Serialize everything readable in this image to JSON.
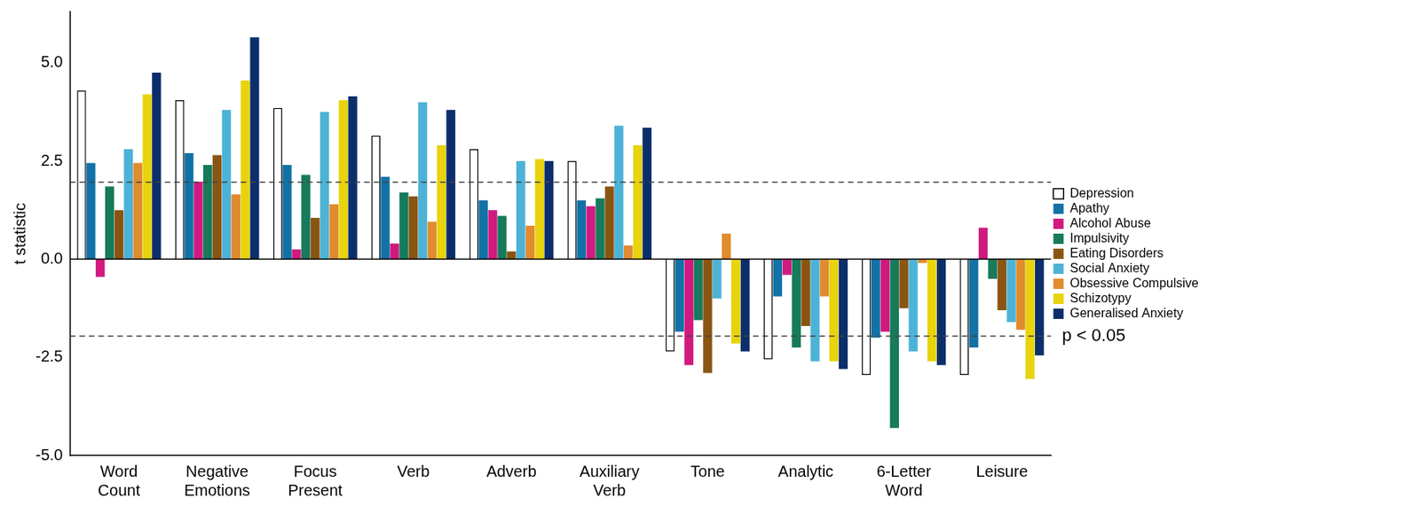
{
  "chart_data": {
    "type": "bar",
    "y_label": "t statistic",
    "categories": [
      "Word Count",
      "Negative Emotions",
      "Focus Present",
      "Verb",
      "Adverb",
      "Auxiliary Verb",
      "Tone",
      "Analytic",
      "6-Letter Word",
      "Leisure"
    ],
    "series": [
      {
        "name": "Depression",
        "color": "#ffffff",
        "values": [
          4.3,
          4.05,
          3.85,
          3.15,
          2.8,
          2.5,
          -2.35,
          -2.55,
          -2.95,
          -2.95
        ]
      },
      {
        "name": "Apathy",
        "color": "#1272a6",
        "values": [
          2.45,
          2.7,
          2.4,
          2.1,
          1.5,
          1.5,
          -1.85,
          -0.95,
          -2.0,
          -2.25
        ]
      },
      {
        "name": "Alcohol Abuse",
        "color": "#d1197f",
        "values": [
          -0.45,
          1.97,
          0.25,
          0.4,
          1.25,
          1.35,
          -2.7,
          -0.4,
          -1.85,
          0.8
        ]
      },
      {
        "name": "Impulsivity",
        "color": "#167a5b",
        "values": [
          1.85,
          2.4,
          2.15,
          1.7,
          1.1,
          1.55,
          -1.55,
          -2.25,
          -4.3,
          -0.5
        ]
      },
      {
        "name": "Eating Disorders",
        "color": "#8a5512",
        "values": [
          1.25,
          2.65,
          1.05,
          1.6,
          0.2,
          1.85,
          -2.9,
          -1.7,
          -1.25,
          -1.3
        ]
      },
      {
        "name": "Social Anxiety",
        "color": "#4db3d6",
        "values": [
          2.8,
          3.8,
          3.75,
          4.0,
          2.5,
          3.4,
          -1.0,
          -2.6,
          -2.35,
          -1.6
        ]
      },
      {
        "name": "Obsessive Compulsive",
        "color": "#e08b2e",
        "values": [
          2.45,
          1.65,
          1.4,
          0.95,
          0.85,
          0.35,
          0.65,
          -0.95,
          -0.1,
          -1.8
        ]
      },
      {
        "name": "Schizotypy",
        "color": "#e8d30c",
        "values": [
          4.2,
          4.55,
          4.05,
          2.9,
          2.55,
          2.9,
          -2.15,
          -2.6,
          -2.6,
          -3.05
        ]
      },
      {
        "name": "Generalised Anxiety",
        "color": "#0c2f6b",
        "values": [
          4.75,
          5.65,
          4.15,
          3.8,
          2.5,
          3.35,
          -2.35,
          -2.8,
          -2.7,
          -2.45
        ]
      }
    ],
    "ylim": [
      -5,
      6.3
    ],
    "yticks": [
      {
        "value": -5,
        "label": "-5.0"
      },
      -2.5,
      {
        "value": 0,
        "label": "0.0"
      },
      2.5,
      {
        "value": 5,
        "label": "5.0"
      }
    ],
    "reference_lines": [
      {
        "y": 1.96
      },
      {
        "y": -1.96,
        "label": "p < 0.05"
      }
    ],
    "grid": false,
    "legend": "right"
  }
}
